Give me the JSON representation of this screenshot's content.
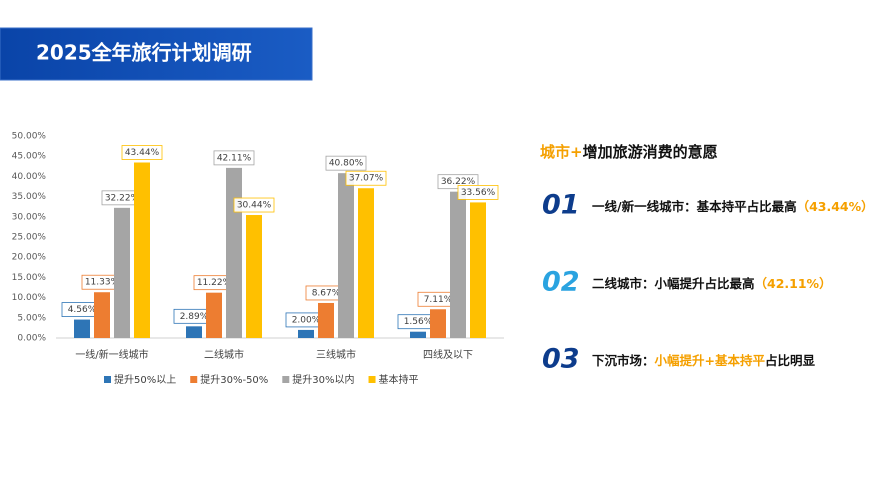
{
  "header": {
    "title": "2025全年旅行计划调研"
  },
  "chart_data": {
    "type": "bar",
    "categories": [
      "一线/新一线城市",
      "二线城市",
      "三线城市",
      "四线及以下"
    ],
    "series": [
      {
        "name": "提升50%以上",
        "color": "#2e75b6",
        "values": [
          4.56,
          2.89,
          2.0,
          1.56
        ],
        "value_labels": [
          "4.56%",
          "2.89%",
          "2.00%",
          "1.56%"
        ]
      },
      {
        "name": "提升30%-50%",
        "color": "#ed7d31",
        "values": [
          11.33,
          11.22,
          8.67,
          7.11
        ],
        "value_labels": [
          "11.33%",
          "11.22%",
          "8.67%",
          "7.11%"
        ]
      },
      {
        "name": "提升30%以内",
        "color": "#a5a5a5",
        "values": [
          32.22,
          42.11,
          40.8,
          36.22
        ],
        "value_labels": [
          "32.22%",
          "42.11%",
          "40.80%",
          "36.22%"
        ]
      },
      {
        "name": "基本持平",
        "color": "#ffc000",
        "values": [
          43.44,
          30.44,
          37.07,
          33.56
        ],
        "value_labels": [
          "43.44%",
          "30.44%",
          "37.07%",
          "33.56%"
        ]
      }
    ],
    "ylim": [
      0,
      50
    ],
    "yticks": [
      {
        "value": 0,
        "label": "0.00%"
      },
      {
        "value": 5,
        "label": "5.00%"
      },
      {
        "value": 10,
        "label": "10.00%"
      },
      {
        "value": 15,
        "label": "15.00%"
      },
      {
        "value": 20,
        "label": "20.00%"
      },
      {
        "value": 25,
        "label": "25.00%"
      },
      {
        "value": 30,
        "label": "30.00%"
      },
      {
        "value": 35,
        "label": "35.00%"
      },
      {
        "value": 40,
        "label": "40.00%"
      },
      {
        "value": 45,
        "label": "45.00%"
      },
      {
        "value": 50,
        "label": "50.00%"
      }
    ],
    "grid": false,
    "legend": "bottom"
  },
  "panel": {
    "heading_accent": "城市+",
    "heading_rest": "增加旅游消费的意愿",
    "items": [
      {
        "number": "01",
        "text": "一线/新一线城市：基本持平占比最高",
        "highlight": "（43.44%）"
      },
      {
        "number": "02",
        "text": "二线城市：小幅提升占比最高",
        "highlight": "（42.11%）"
      },
      {
        "number": "03",
        "text": "下沉市场：",
        "highlight": "小幅提升+基本持平",
        "tail": "占比明显"
      }
    ]
  }
}
